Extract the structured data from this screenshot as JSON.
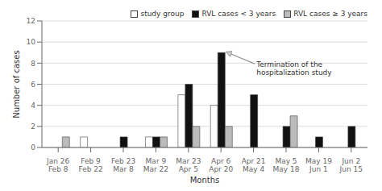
{
  "chart_data": {
    "type": "bar",
    "categories": [
      "Jan 26\nFeb 8",
      "Feb 9\nFeb 22",
      "Feb 23\nMar 8",
      "Mar 9\nMar 22",
      "Mar 23\nApr 5",
      "Apr 6\nApr 20",
      "Apr 21\nMay 4",
      "May 5\nMay 18",
      "May 19\nJun 1",
      "Jun 2\nJun 15"
    ],
    "series": [
      {
        "name": "study group",
        "color": "#ffffff",
        "values": [
          0,
          1,
          0,
          1,
          5,
          4,
          0,
          0,
          0,
          0
        ]
      },
      {
        "name": "RVL cases < 3 years",
        "color": "#111111",
        "values": [
          0,
          0,
          1,
          1,
          6,
          9,
          5,
          2,
          1,
          2
        ]
      },
      {
        "name": "RVL cases ≥ 3 years",
        "color": "#bbbbbb",
        "values": [
          1,
          0,
          0,
          1,
          2,
          2,
          0,
          3,
          0,
          0
        ]
      }
    ],
    "xlabel": "Months",
    "ylabel": "Number of cases",
    "ylim": [
      0,
      12
    ],
    "yticks": [
      0,
      2,
      4,
      6,
      8,
      10,
      12
    ],
    "grid": true,
    "legend": "upper right",
    "annotations": [
      "Termination of the\nhospitalization study"
    ]
  }
}
